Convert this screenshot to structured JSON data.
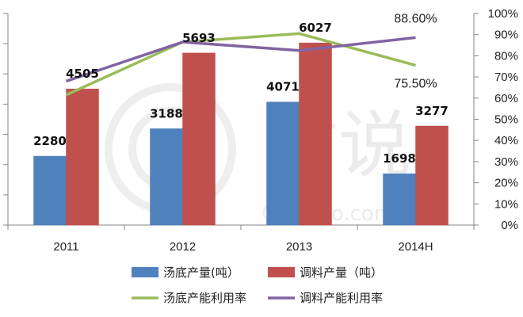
{
  "chart_data": {
    "type": "bar",
    "categories": [
      "2011",
      "2012",
      "2013",
      "2014H"
    ],
    "series": [
      {
        "name": "汤底产量(吨）",
        "type": "bar",
        "axis": "left",
        "color": "#4f81bd",
        "values": [
          2280,
          3188,
          4071,
          1698
        ],
        "labels": [
          "2280",
          "3188",
          "4071",
          "1698"
        ]
      },
      {
        "name": "调料产量（吨）",
        "type": "bar",
        "axis": "left",
        "color": "#c0504d",
        "values": [
          4505,
          5693,
          6027,
          3277
        ],
        "labels": [
          "4505",
          "5693",
          "6027",
          "3277"
        ]
      },
      {
        "name": "汤底产能利用率",
        "type": "line",
        "axis": "right",
        "color": "#9bbb59",
        "values": [
          61.5,
          86.5,
          90.5,
          75.5
        ]
      },
      {
        "name": "调料产能利用率",
        "type": "line",
        "axis": "right",
        "color": "#8064a2",
        "values": [
          68.0,
          86.5,
          82.5,
          88.6
        ]
      }
    ],
    "annotations": [
      {
        "text": "88.60%",
        "series": 3,
        "index": 3
      },
      {
        "text": "75.50%",
        "series": 2,
        "index": 3
      }
    ],
    "ylim_left": [
      0,
      7000
    ],
    "ylim_right": [
      0,
      100
    ],
    "yticks_right": [
      "0%",
      "10%",
      "20%",
      "30%",
      "40%",
      "50%",
      "60%",
      "70%",
      "80%",
      "90%",
      "100%"
    ],
    "left_axis_tick_labels_shown": false,
    "legend_position": "bottom",
    "grid": false,
    "watermark": {
      "text": "财说",
      "subtext": "Caishuo.com"
    }
  }
}
